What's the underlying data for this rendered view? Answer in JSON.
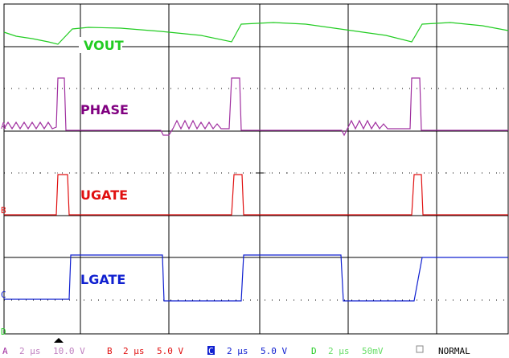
{
  "traces": [
    {
      "label": "VOUT"
    },
    {
      "label": "PHASE"
    },
    {
      "label": "UGATE"
    },
    {
      "label": "LGATE"
    }
  ],
  "channel_markers": [
    "A",
    "B",
    "C",
    "D"
  ],
  "status_bar": {
    "channels": [
      {
        "letter": "A",
        "timebase": "2 μs",
        "scale": "10.0 V"
      },
      {
        "letter": "B",
        "timebase": "2 μs",
        "scale": "5.0 V"
      },
      {
        "letter": "C",
        "timebase": "2 μs",
        "scale": "5.0 V"
      },
      {
        "letter": "D",
        "timebase": "2 μs",
        "scale": "50mV"
      }
    ],
    "mode": "NORMAL"
  }
}
